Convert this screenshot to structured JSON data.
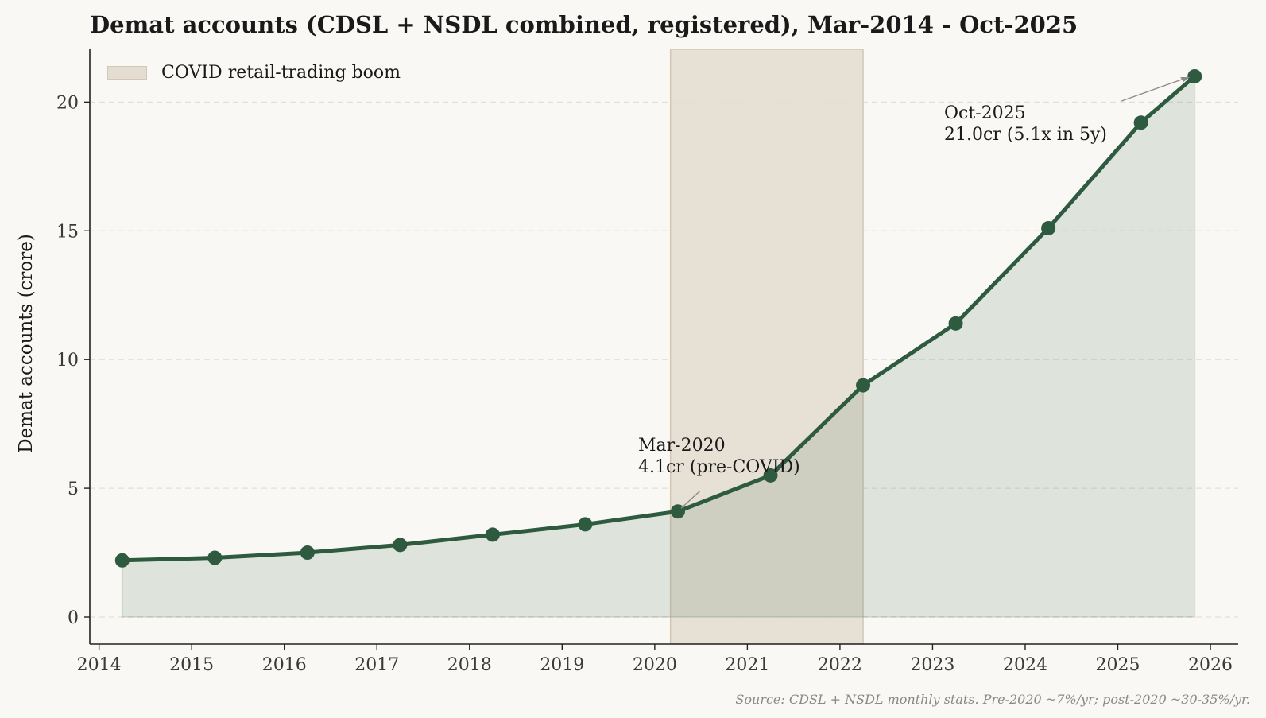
{
  "chart_data": {
    "type": "line",
    "title": "Demat accounts (CDSL + NSDL combined, registered), Mar-2014 - Oct-2025",
    "xlabel": "",
    "ylabel": "Demat accounts (crore)",
    "xlim": [
      2013.9,
      2026.3
    ],
    "ylim": [
      -1.05,
      22.05
    ],
    "xticks": [
      2014,
      2015,
      2016,
      2017,
      2018,
      2019,
      2020,
      2021,
      2022,
      2023,
      2024,
      2025,
      2026
    ],
    "yticks": [
      0,
      5,
      10,
      15,
      20
    ],
    "grid": "y-dashed",
    "series": [
      {
        "x": [
          2014.25,
          2015.25,
          2016.25,
          2017.25,
          2018.25,
          2019.25,
          2020.25,
          2021.25,
          2022.25,
          2023.25,
          2024.25,
          2025.25,
          2025.83
        ],
        "values": [
          2.2,
          2.3,
          2.5,
          2.8,
          3.2,
          3.6,
          4.1,
          5.5,
          9.0,
          11.4,
          15.1,
          19.2,
          21.0
        ],
        "color": "#2e5a3f",
        "fill": "#dbe0d9"
      }
    ],
    "shaded_region": {
      "label": "COVID retail-trading boom",
      "x_start": 2020.17,
      "x_end": 2022.25,
      "color": "#e4ddd1"
    },
    "legend_position": "upper-left",
    "annotations": [
      {
        "line1": "Mar-2020",
        "line2": "4.1cr (pre-COVID)",
        "x": 2020.25,
        "y": 4.1
      },
      {
        "line1": "Oct-2025",
        "line2": "21.0cr (5.1x in 5y)",
        "x": 2025.83,
        "y": 21.0
      }
    ]
  },
  "source": "Source: CDSL + NSDL monthly stats. Pre-2020 ~7%/yr; post-2020 ~30-35%/yr."
}
